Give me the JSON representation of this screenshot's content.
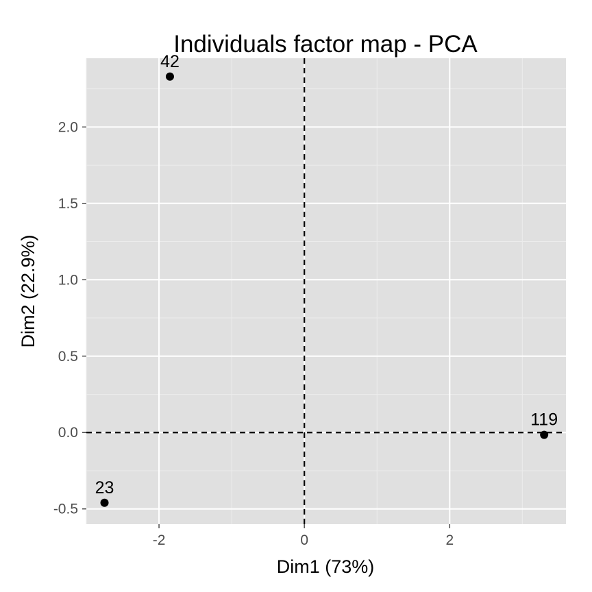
{
  "chart_data": {
    "type": "scatter",
    "title": "Individuals factor map - PCA",
    "xlabel": "Dim1 (73%)",
    "ylabel": "Dim2 (22.9%)",
    "xlim": [
      -3.0,
      3.6
    ],
    "ylim": [
      -0.6,
      2.45
    ],
    "x_ticks": [
      -2,
      0,
      2
    ],
    "x_tick_labels": [
      "-2",
      "0",
      "2"
    ],
    "x_minor_ticks": [
      -3,
      -1,
      1,
      3
    ],
    "y_ticks": [
      -0.5,
      0.0,
      0.5,
      1.0,
      1.5,
      2.0
    ],
    "y_tick_labels": [
      "-0.5",
      "0.0",
      "0.5",
      "1.0",
      "1.5",
      "2.0"
    ],
    "y_minor_ticks": [
      -0.25,
      0.25,
      0.75,
      1.25,
      1.75,
      2.25
    ],
    "grid": true,
    "reference_lines": {
      "x": 0,
      "y": 0,
      "style": "dashed"
    },
    "points": [
      {
        "label": "42",
        "x": -1.85,
        "y": 2.33
      },
      {
        "label": "119",
        "x": 3.3,
        "y": -0.015
      },
      {
        "label": "23",
        "x": -2.75,
        "y": -0.46
      }
    ],
    "colors": {
      "panel_background": "#e0e0e0",
      "grid_major": "#ffffff",
      "grid_minor": "#ececec",
      "point": "#000000",
      "reference_line": "#000000",
      "tick_label": "#4d4d4d"
    }
  }
}
